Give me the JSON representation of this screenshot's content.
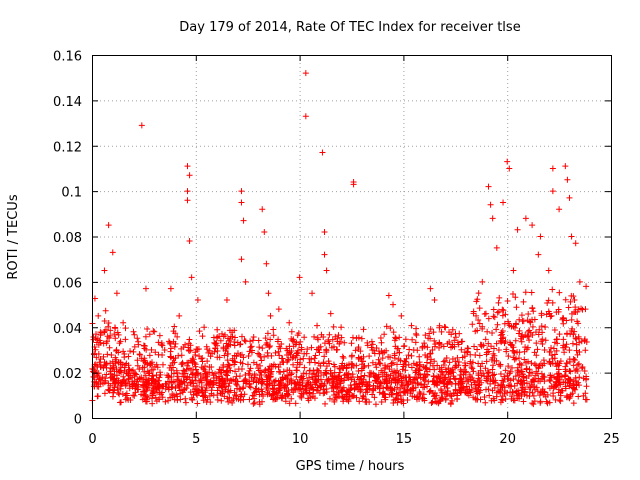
{
  "chart_data": {
    "type": "scatter",
    "title": "Day 179 of 2014, Rate Of TEC Index for receiver tlse",
    "xlabel": "GPS time / hours",
    "ylabel": "ROTI / TECUs",
    "xlim": [
      0,
      25
    ],
    "ylim": [
      0,
      0.16
    ],
    "xticks": [
      "0",
      "5",
      "10",
      "15",
      "20",
      "25"
    ],
    "yticks": [
      "0",
      "0.02",
      "0.04",
      "0.06",
      "0.08",
      "0.1",
      "0.12",
      "0.14",
      "0.16"
    ],
    "grid": true,
    "marker": "+",
    "colors": {
      "series": "#ff0000",
      "grid": "#a0a0a0",
      "axis": "#000000"
    },
    "series": [
      {
        "name": "ROTI",
        "x": [
          0.1,
          0.3,
          0.6,
          0.8,
          1.0,
          1.2,
          1.5,
          2.0,
          2.4,
          2.6,
          3.0,
          3.5,
          3.8,
          4.2,
          4.6,
          4.7,
          4.6,
          4.6,
          4.7,
          4.8,
          5.1,
          5.4,
          6.0,
          6.5,
          7.2,
          7.2,
          7.3,
          7.2,
          7.4,
          8.2,
          8.3,
          8.4,
          8.5,
          8.6,
          9.0,
          9.5,
          10.0,
          10.3,
          10.3,
          10.6,
          11.1,
          11.2,
          11.2,
          11.3,
          11.5,
          12.0,
          12.6,
          12.6,
          13.0,
          13.5,
          14.3,
          14.5,
          14.9,
          15.5,
          16.0,
          16.3,
          16.5,
          17.0,
          17.5,
          18.0,
          18.5,
          18.8,
          19.1,
          19.2,
          19.3,
          19.5,
          19.8,
          20.0,
          20.1,
          20.3,
          20.5,
          20.9,
          21.2,
          21.5,
          21.6,
          22.0,
          22.2,
          22.2,
          22.5,
          22.8,
          22.9,
          23.0,
          23.1,
          23.3,
          23.5,
          23.8,
          0.2,
          0.5,
          0.9,
          1.4,
          1.8,
          2.2,
          2.8,
          3.3,
          4.0,
          4.4,
          5.0,
          5.6,
          6.2,
          6.8,
          7.6,
          8.0,
          8.8,
          9.3,
          9.8,
          10.5,
          11.0,
          11.8,
          12.3,
          13.2,
          13.8,
          14.1,
          14.7,
          15.2,
          15.8,
          16.2,
          16.8,
          17.3,
          17.8,
          18.2,
          18.6,
          19.0,
          19.6,
          20.2,
          20.6,
          21.0,
          21.4,
          21.8,
          22.3,
          22.7,
          23.2,
          23.6
        ],
        "y": [
          0.028,
          0.045,
          0.065,
          0.085,
          0.073,
          0.055,
          0.042,
          0.038,
          0.129,
          0.057,
          0.038,
          0.03,
          0.057,
          0.045,
          0.111,
          0.107,
          0.1,
          0.096,
          0.078,
          0.062,
          0.052,
          0.04,
          0.033,
          0.052,
          0.1,
          0.095,
          0.087,
          0.07,
          0.06,
          0.092,
          0.082,
          0.068,
          0.055,
          0.045,
          0.048,
          0.042,
          0.062,
          0.152,
          0.133,
          0.055,
          0.117,
          0.082,
          0.072,
          0.065,
          0.046,
          0.04,
          0.104,
          0.103,
          0.035,
          0.03,
          0.054,
          0.05,
          0.045,
          0.03,
          0.033,
          0.057,
          0.052,
          0.04,
          0.025,
          0.02,
          0.045,
          0.06,
          0.102,
          0.094,
          0.088,
          0.075,
          0.095,
          0.113,
          0.11,
          0.065,
          0.083,
          0.088,
          0.085,
          0.072,
          0.08,
          0.065,
          0.11,
          0.1,
          0.092,
          0.111,
          0.105,
          0.097,
          0.08,
          0.077,
          0.06,
          0.058,
          0.016,
          0.018,
          0.022,
          0.02,
          0.015,
          0.017,
          0.024,
          0.019,
          0.016,
          0.021,
          0.018,
          0.015,
          0.02,
          0.017,
          0.019,
          0.022,
          0.016,
          0.018,
          0.015,
          0.021,
          0.023,
          0.017,
          0.019,
          0.016,
          0.018,
          0.02,
          0.017,
          0.015,
          0.019,
          0.016,
          0.018,
          0.021,
          0.017,
          0.019,
          0.024,
          0.028,
          0.03,
          0.032,
          0.029,
          0.031,
          0.033,
          0.03,
          0.028,
          0.032,
          0.026,
          0.022
        ]
      }
    ],
    "note": "Dense cloud of additional measurements (approx. 0.005-0.05 TECU) spans the full 0-24 h range; densest after 18 h."
  }
}
